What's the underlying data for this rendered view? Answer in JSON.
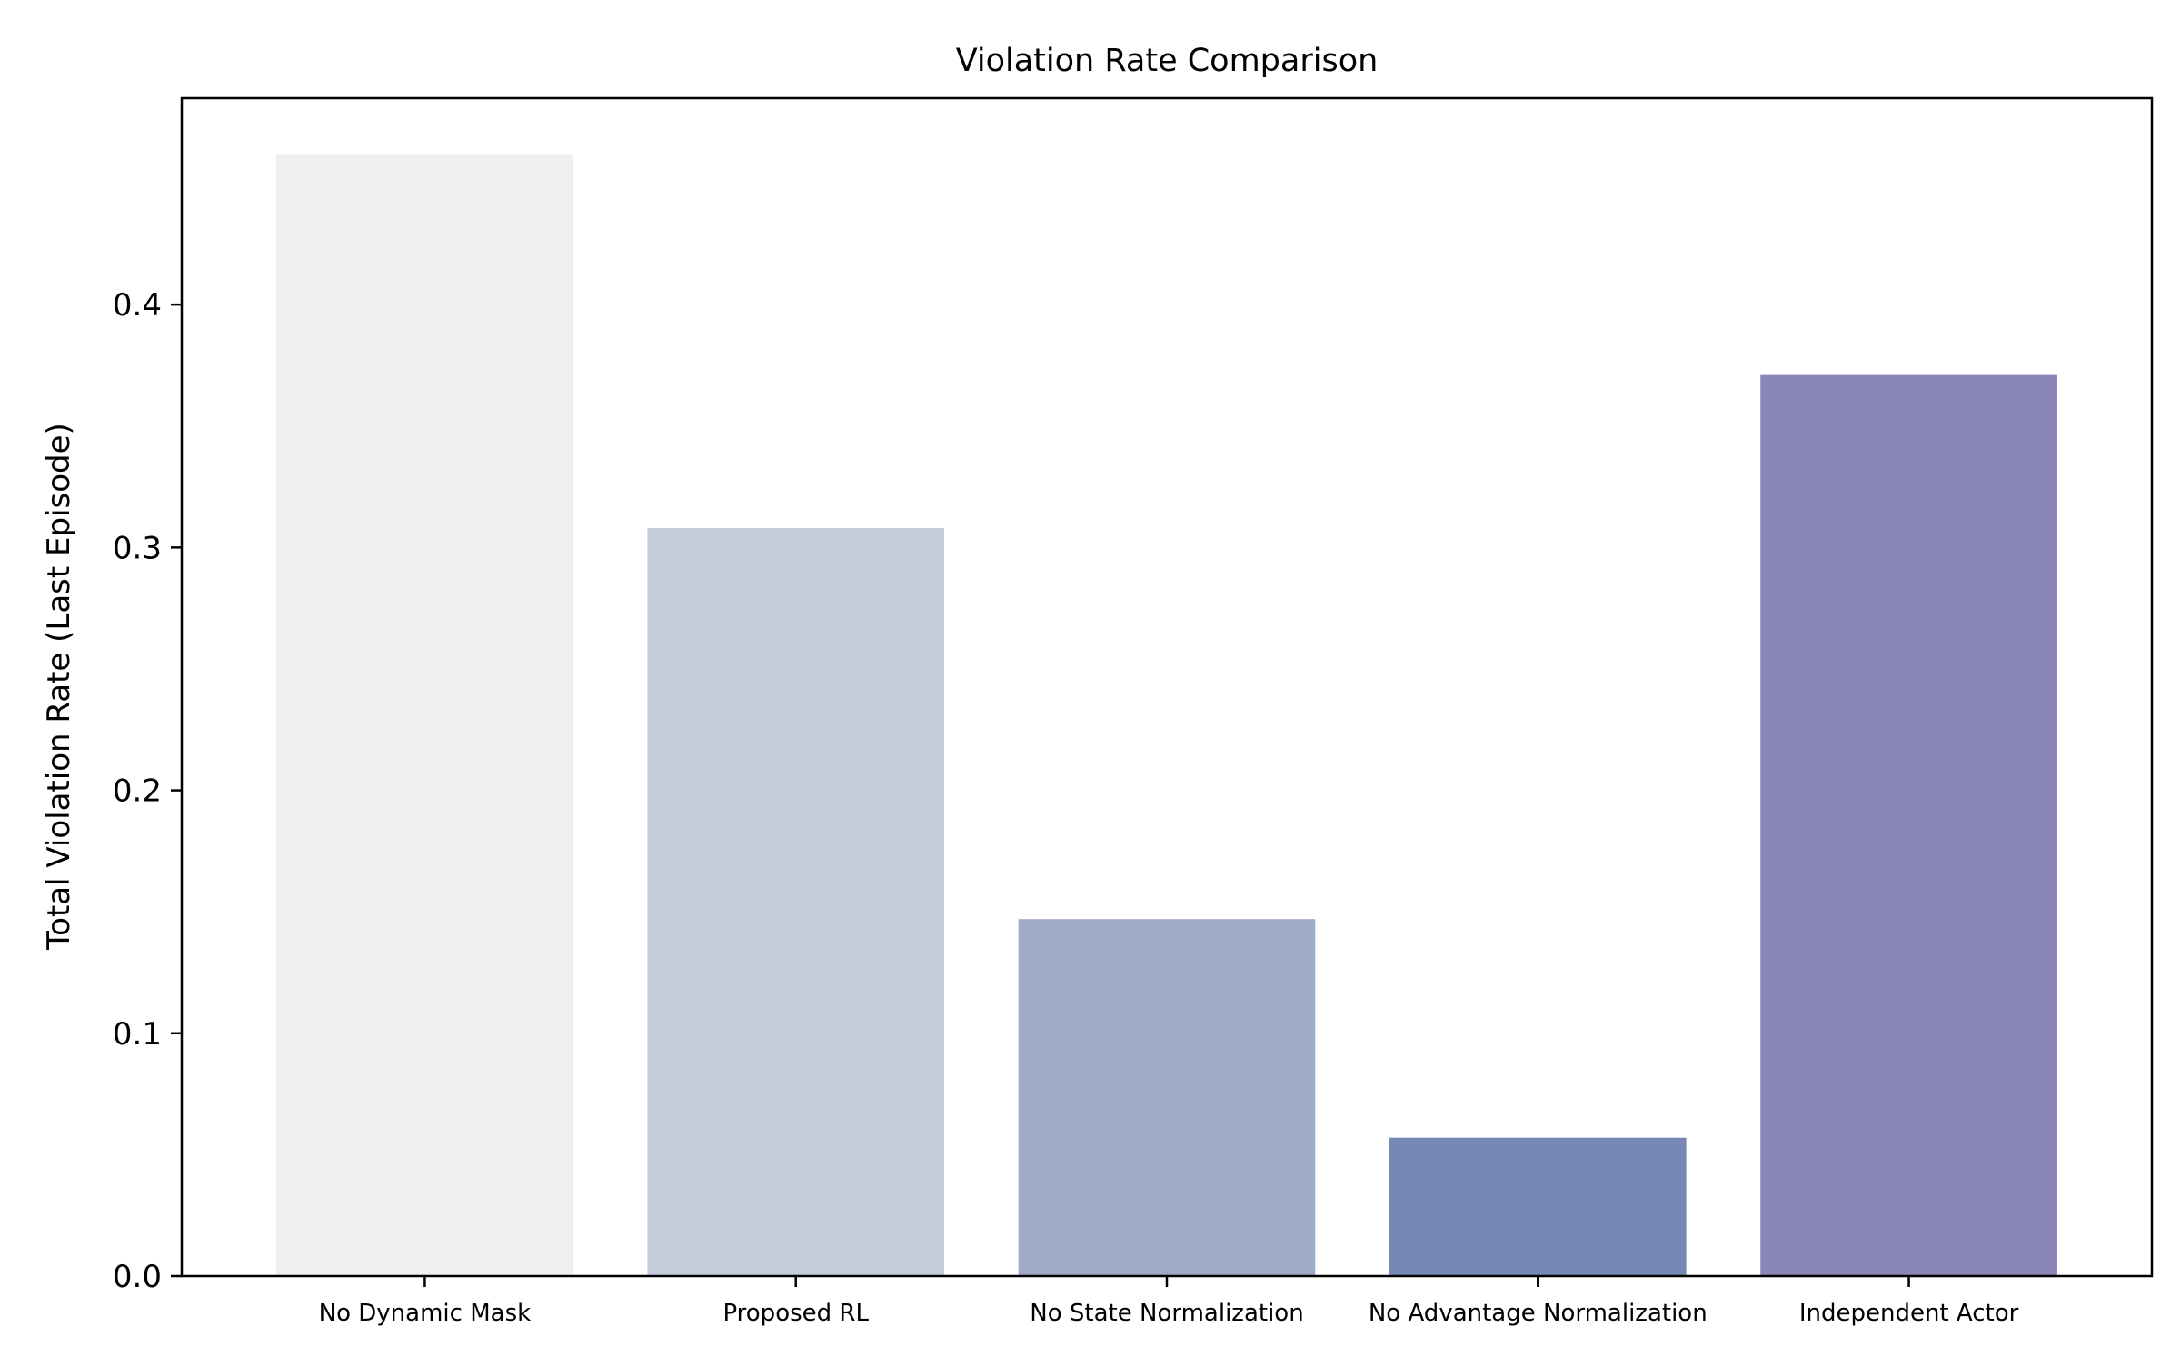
{
  "chart_data": {
    "type": "bar",
    "title": "Violation Rate Comparison",
    "xlabel": "",
    "ylabel": "Total Violation Rate (Last Episode)",
    "categories": [
      "No Dynamic Mask",
      "Proposed RL",
      "No State Normalization",
      "No Advantage Normalization",
      "Independent Actor"
    ],
    "values": [
      0.462,
      0.308,
      0.147,
      0.057,
      0.371
    ],
    "colors": [
      "#f0eeef",
      "#c6ccdc",
      "#9dabc9",
      "#7888b5",
      "#8a86b7"
    ],
    "ylim": [
      0,
      0.485
    ],
    "yticks": [
      0.0,
      0.1,
      0.2,
      0.3,
      0.4
    ],
    "ytick_labels": [
      "0.0",
      "0.1",
      "0.2",
      "0.3",
      "0.4"
    ],
    "grid": false,
    "legend": "none"
  }
}
